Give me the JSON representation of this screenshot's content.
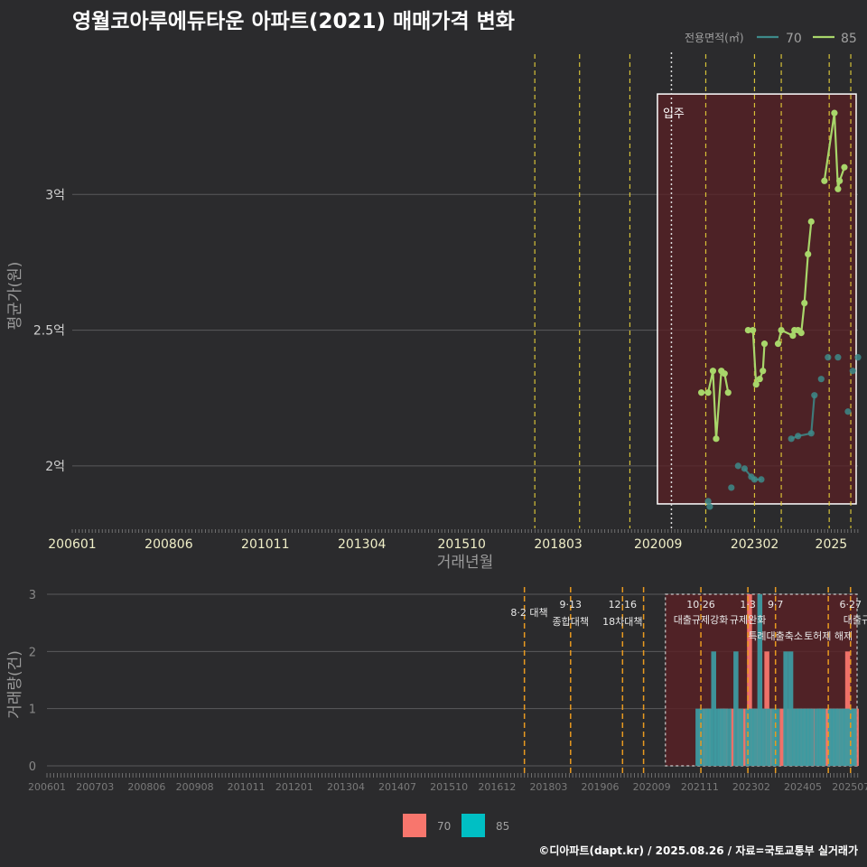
{
  "title": "영월코아루에듀타운 아파트(2021) 매매가격 변화",
  "footer": "©디아파트(dapt.kr) / 2025.08.26 / 자료=국토교통부 실거래가",
  "colors": {
    "bg": "#2b2b2d",
    "grid": "#5a5a5c",
    "series70": "#3d8a8a",
    "series85": "#a8d66a",
    "bar70": "#f8766d",
    "bar85": "#3d9aa0",
    "policy": "#e8d23a",
    "policy_bottom": "#e89a20",
    "highlight": "#5a2024"
  },
  "chart_data": [
    {
      "type": "line",
      "title": "영월코아루에듀타운 아파트(2021) 매매가격 변화",
      "xlabel": "거래년월",
      "ylabel": "평균가(원)",
      "x_ticks": [
        "200601",
        "200806",
        "201011",
        "201304",
        "201510",
        "201803",
        "202009",
        "202302",
        "2025"
      ],
      "y_ticks": [
        {
          "v": 2.0,
          "label": "2억"
        },
        {
          "v": 2.5,
          "label": "2.5억"
        },
        {
          "v": 3.0,
          "label": "3억"
        }
      ],
      "ylim": [
        1.77,
        3.55
      ],
      "xlim": [
        2006.0,
        2025.67
      ],
      "legend_title": "전용면적(㎡)",
      "legend": [
        "70",
        "85"
      ],
      "annotation": "입주",
      "movein_x": 2021.0,
      "policy_lines": [
        2017.58,
        2018.7,
        2019.96,
        2021.86,
        2023.08,
        2023.75,
        2024.95,
        2025.49
      ],
      "highlight_range": [
        2020.65,
        2025.67,
        1.86,
        3.37
      ],
      "series": [
        {
          "name": "85",
          "points": [
            [
              2021.75,
              2.27
            ],
            [
              2021.92,
              2.27
            ],
            [
              2022.04,
              2.35
            ],
            [
              2022.12,
              2.1
            ],
            [
              2022.25,
              2.35
            ],
            [
              2022.33,
              2.34
            ],
            [
              2022.42,
              2.27
            ],
            [
              2022.92,
              2.5
            ],
            [
              2023.04,
              2.5
            ],
            [
              2023.12,
              2.3
            ],
            [
              2023.21,
              2.32
            ],
            [
              2023.29,
              2.35
            ],
            [
              2023.33,
              2.45
            ],
            [
              2023.67,
              2.45
            ],
            [
              2023.75,
              2.5
            ],
            [
              2024.04,
              2.48
            ],
            [
              2024.08,
              2.5
            ],
            [
              2024.17,
              2.5
            ],
            [
              2024.25,
              2.49
            ],
            [
              2024.33,
              2.6
            ],
            [
              2024.42,
              2.78
            ],
            [
              2024.5,
              2.9
            ],
            [
              2024.83,
              3.05
            ],
            [
              2025.08,
              3.3
            ],
            [
              2025.17,
              3.02
            ],
            [
              2025.21,
              3.05
            ],
            [
              2025.33,
              3.1
            ]
          ]
        },
        {
          "name": "70",
          "points": [
            [
              2021.92,
              1.87
            ],
            [
              2021.96,
              1.85
            ],
            [
              2022.5,
              1.92
            ],
            [
              2022.67,
              2.0
            ],
            [
              2022.83,
              1.99
            ],
            [
              2023.0,
              1.96
            ],
            [
              2023.08,
              1.95
            ],
            [
              2023.25,
              1.95
            ],
            [
              2024.0,
              2.1
            ],
            [
              2024.17,
              2.11
            ],
            [
              2024.5,
              2.12
            ],
            [
              2024.58,
              2.26
            ],
            [
              2024.75,
              2.32
            ],
            [
              2024.92,
              2.4
            ],
            [
              2025.17,
              2.4
            ],
            [
              2025.42,
              2.2
            ],
            [
              2025.54,
              2.35
            ],
            [
              2025.67,
              2.4
            ]
          ]
        }
      ],
      "lines_connect": {
        "85": [
          [
            0,
            1,
            2,
            3,
            4,
            5,
            6
          ],
          [
            7,
            8,
            9,
            10,
            11,
            12
          ],
          [
            13,
            14,
            15,
            16,
            17,
            18,
            19,
            20,
            21
          ],
          [
            22,
            23,
            24,
            25,
            26
          ]
        ],
        "70": [
          [
            4,
            5,
            6,
            7
          ],
          [
            8,
            9,
            10,
            11
          ]
        ]
      }
    },
    {
      "type": "bar",
      "ylabel": "거래량(건)",
      "x_ticks": [
        "200601",
        "200703",
        "200806",
        "200908",
        "201011",
        "201201",
        "201304",
        "201407",
        "201510",
        "201612",
        "201803",
        "201906",
        "202009",
        "202111",
        "202302",
        "202405",
        "202507"
      ],
      "y_ticks": [
        0,
        1,
        2,
        3
      ],
      "ylim": [
        0,
        3
      ],
      "legend": [
        "70",
        "85"
      ],
      "highlight_range": [
        2021.0,
        2025.67
      ],
      "policy_lines": [
        {
          "x": 2017.58,
          "date": "",
          "label": "8·2 대책"
        },
        {
          "x": 2018.7,
          "date": "9·13",
          "label": "종합대책"
        },
        {
          "x": 2019.96,
          "date": "12·16",
          "label": "18차대책"
        },
        {
          "x": 2020.47,
          "date": "",
          "label": ""
        },
        {
          "x": 2021.86,
          "date": "10·26",
          "label": "대출규제강화"
        },
        {
          "x": 2023.0,
          "date": "1·3",
          "label": "규제완화"
        },
        {
          "x": 2023.67,
          "date": "9·7",
          "label": "특례대출축소"
        },
        {
          "x": 2024.95,
          "date": "",
          "label": "토허제 해제"
        },
        {
          "x": 2025.49,
          "date": "6·27",
          "label": "대출규"
        }
      ],
      "bars70": [
        [
          2021.96,
          1
        ],
        [
          2022.04,
          1
        ],
        [
          2022.38,
          1
        ],
        [
          2022.46,
          1
        ],
        [
          2022.63,
          1
        ],
        [
          2022.79,
          1
        ],
        [
          2022.92,
          1
        ],
        [
          2023.04,
          3
        ],
        [
          2023.12,
          1
        ],
        [
          2023.21,
          1
        ],
        [
          2023.33,
          1
        ],
        [
          2023.46,
          2
        ],
        [
          2023.58,
          1
        ],
        [
          2023.83,
          1
        ],
        [
          2024.0,
          1
        ],
        [
          2024.08,
          1
        ],
        [
          2024.17,
          1
        ],
        [
          2024.25,
          1
        ],
        [
          2024.33,
          1
        ],
        [
          2024.42,
          1
        ],
        [
          2024.5,
          1
        ],
        [
          2024.58,
          1
        ],
        [
          2024.71,
          1
        ],
        [
          2024.79,
          1
        ],
        [
          2024.88,
          1
        ],
        [
          2024.96,
          1
        ],
        [
          2025.04,
          1
        ],
        [
          2025.13,
          1
        ],
        [
          2025.21,
          1
        ],
        [
          2025.33,
          1
        ],
        [
          2025.42,
          2
        ],
        [
          2025.54,
          1
        ],
        [
          2025.63,
          1
        ]
      ],
      "bars85": [
        [
          2021.79,
          1
        ],
        [
          2021.88,
          1
        ],
        [
          2022.0,
          1
        ],
        [
          2022.08,
          1
        ],
        [
          2022.17,
          2
        ],
        [
          2022.25,
          1
        ],
        [
          2022.33,
          1
        ],
        [
          2022.42,
          1
        ],
        [
          2022.54,
          1
        ],
        [
          2022.71,
          2
        ],
        [
          2022.83,
          1
        ],
        [
          2023.0,
          1
        ],
        [
          2023.08,
          1
        ],
        [
          2023.17,
          1
        ],
        [
          2023.29,
          3
        ],
        [
          2023.38,
          1
        ],
        [
          2023.5,
          1
        ],
        [
          2023.63,
          1
        ],
        [
          2023.71,
          1
        ],
        [
          2023.92,
          2
        ],
        [
          2024.04,
          2
        ],
        [
          2024.13,
          1
        ],
        [
          2024.21,
          1
        ],
        [
          2024.29,
          1
        ],
        [
          2024.38,
          1
        ],
        [
          2024.46,
          1
        ],
        [
          2024.54,
          1
        ],
        [
          2024.67,
          1
        ],
        [
          2024.75,
          1
        ],
        [
          2024.83,
          1
        ],
        [
          2025.0,
          1
        ],
        [
          2025.08,
          1
        ],
        [
          2025.17,
          1
        ],
        [
          2025.29,
          1
        ],
        [
          2025.38,
          1
        ],
        [
          2025.5,
          1
        ],
        [
          2025.58,
          1
        ]
      ]
    }
  ]
}
